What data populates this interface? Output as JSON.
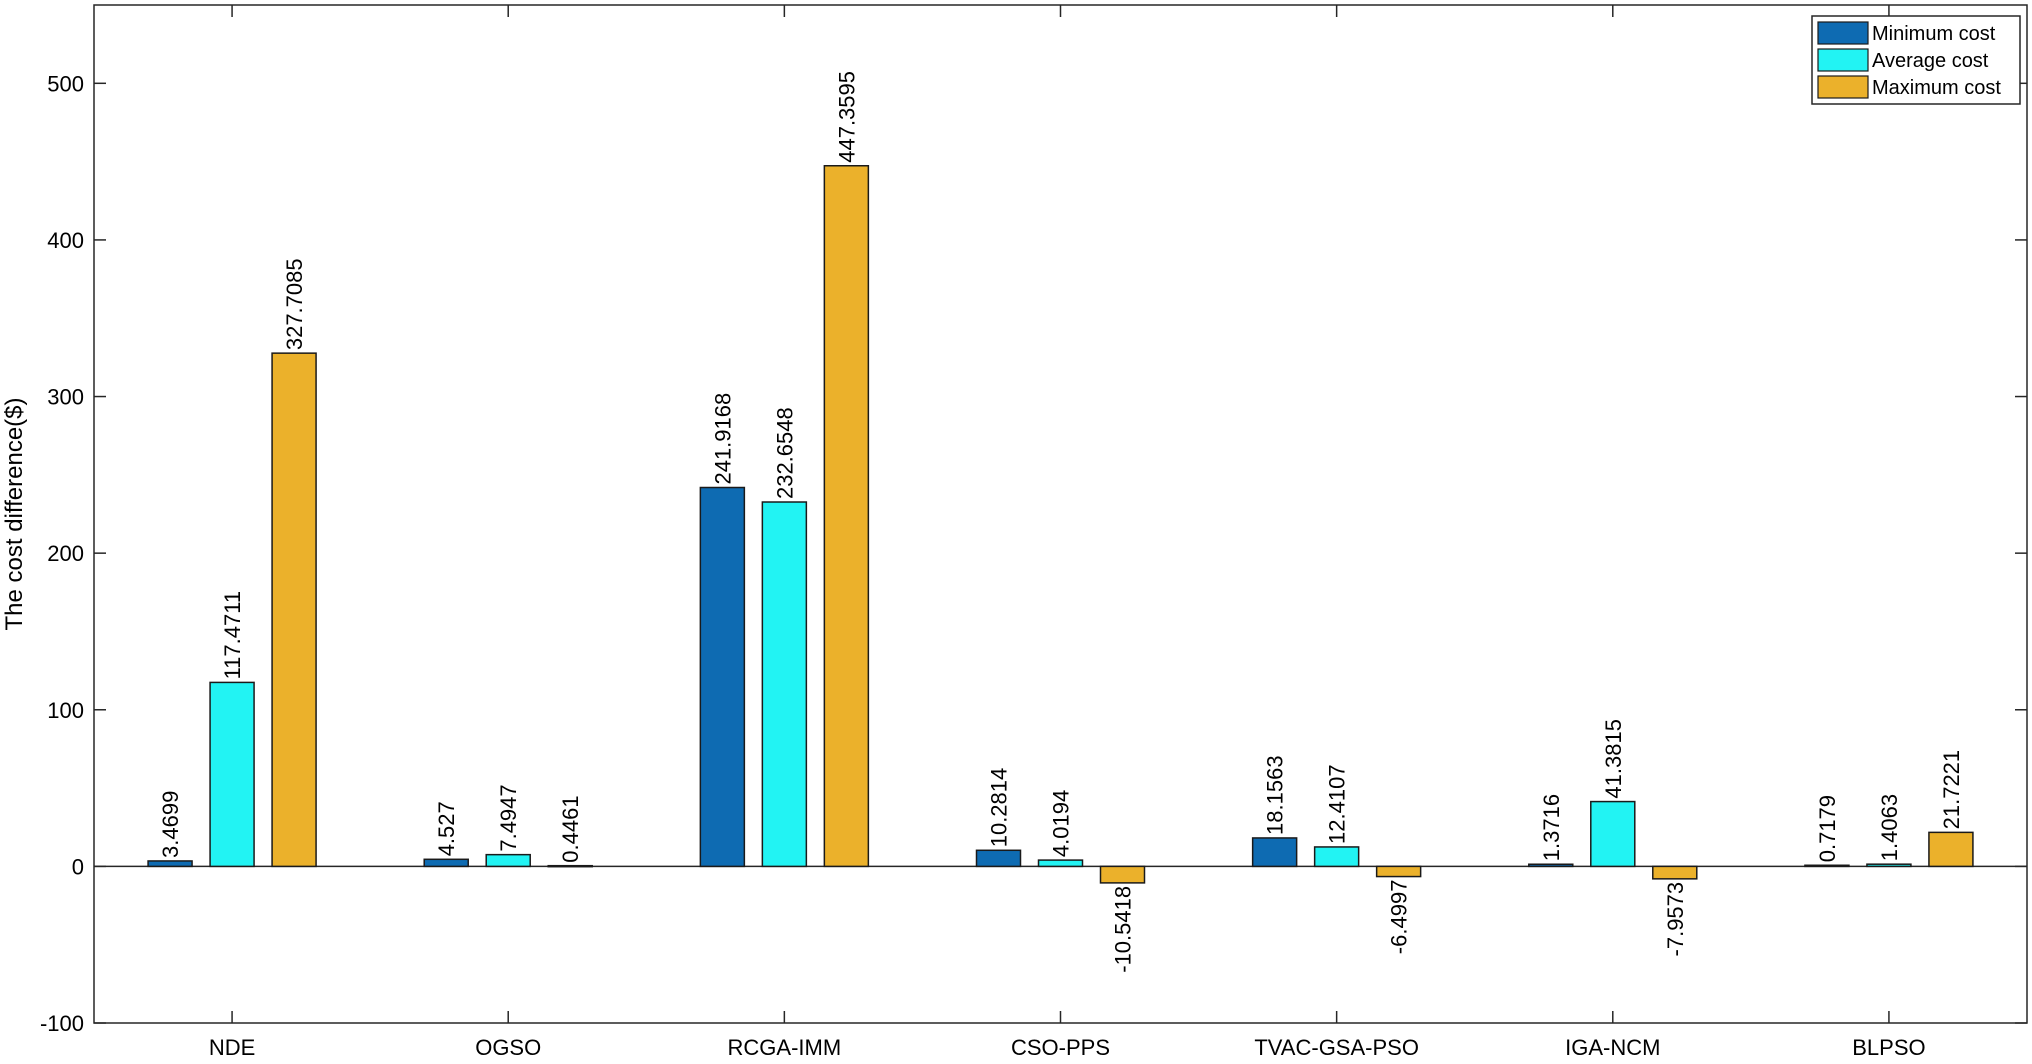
{
  "chart_data": {
    "type": "bar",
    "title": "",
    "xlabel": "",
    "ylabel": "The cost difference($)",
    "ylim": [
      -100,
      550
    ],
    "yticks": [
      -100,
      0,
      100,
      200,
      300,
      400,
      500
    ],
    "grid": false,
    "legend_position": "top-right",
    "categories": [
      "NDE",
      "OGSO",
      "RCGA-IMM",
      "CSO-PPS",
      "TVAC-GSA-PSO",
      "IGA-NCM",
      "BLPSO"
    ],
    "series": [
      {
        "name": "Minimum cost",
        "color": "#0E6BB2",
        "values": [
          3.4699,
          4.527,
          241.9168,
          10.2814,
          18.1563,
          1.3716,
          0.7179
        ],
        "labels": [
          "3.4699",
          "4.527",
          "241.9168",
          "10.2814",
          "18.1563",
          "1.3716",
          "0.7179"
        ]
      },
      {
        "name": "Average cost",
        "color": "#22F3F3",
        "values": [
          117.4711,
          7.4947,
          232.6548,
          4.0194,
          12.4107,
          41.3815,
          1.4063
        ],
        "labels": [
          "117.4711",
          "7.4947",
          "232.6548",
          "4.0194",
          "12.4107",
          "41.3815",
          "1.4063"
        ]
      },
      {
        "name": "Maximum cost",
        "color": "#EBB12B",
        "values": [
          327.7085,
          0.4461,
          447.3595,
          -10.5418,
          -6.4997,
          -7.9573,
          21.7221
        ],
        "labels": [
          "327.7085",
          "0.4461",
          "447.3595",
          "-10.5418",
          "-6.4997",
          "-7.9573",
          "21.7221"
        ]
      }
    ]
  }
}
